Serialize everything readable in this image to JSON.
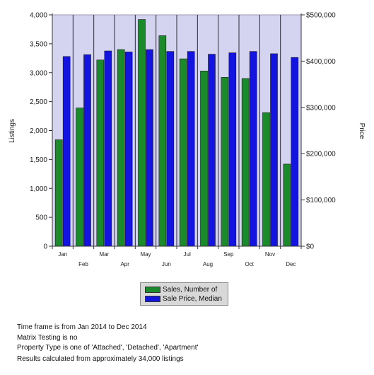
{
  "chart_data": {
    "type": "bar",
    "categories": [
      "Jan",
      "Feb",
      "Mar",
      "Apr",
      "May",
      "Jun",
      "Jul",
      "Aug",
      "Sep",
      "Oct",
      "Nov",
      "Dec"
    ],
    "series": [
      {
        "name": "Sales, Number of",
        "axis": "left",
        "color": "#1a8a2a",
        "values": [
          1840,
          2390,
          3220,
          3400,
          3920,
          3640,
          3240,
          3030,
          2920,
          2900,
          2310,
          1420
        ]
      },
      {
        "name": "Sale Price, Median",
        "axis": "right",
        "color": "#1414e0",
        "values": [
          410000,
          414000,
          422000,
          420000,
          425000,
          421000,
          421000,
          415000,
          418000,
          421000,
          416000,
          408000
        ]
      }
    ],
    "ylabel": "Listings",
    "y2label": "Price",
    "ylim": [
      0,
      4000
    ],
    "y2lim": [
      0,
      500000
    ],
    "yticks": [
      "0",
      "500",
      "1,000",
      "1,500",
      "2,000",
      "2,500",
      "3,000",
      "3,500",
      "4,000"
    ],
    "y2ticks": [
      "$0",
      "$100,000",
      "$200,000",
      "$300,000",
      "$400,000",
      "$500,000"
    ],
    "legend_position": "bottom"
  },
  "notes": {
    "time_frame": "Time frame is from Jan 2014 to Dec 2014",
    "matrix": "Matrix Testing is no",
    "property_type": "Property Type is one of 'Attached', 'Detached', 'Apartment'",
    "results": "Results calculated from approximately 34,000 listings"
  }
}
